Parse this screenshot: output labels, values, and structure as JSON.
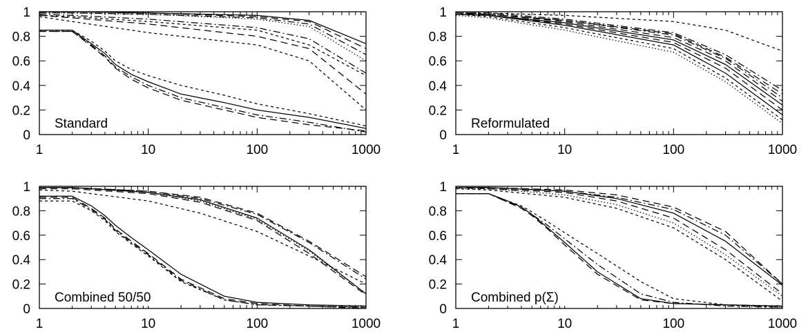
{
  "chart_data": [
    {
      "type": "line",
      "title": "Standard",
      "xscale": "log",
      "xlim": [
        1,
        1000
      ],
      "ylim": [
        0,
        1
      ],
      "xticks": [
        1,
        10,
        100,
        1000
      ],
      "yticks": [
        0,
        0.2,
        0.4,
        0.6,
        0.8,
        1
      ],
      "grid": false,
      "series": [
        {
          "style": "solid",
          "x": [
            1,
            2,
            10,
            100,
            300,
            1000
          ],
          "y": [
            1.0,
            1.0,
            0.99,
            0.97,
            0.93,
            0.74
          ]
        },
        {
          "style": "dashed",
          "x": [
            1,
            2,
            10,
            100,
            300,
            1000
          ],
          "y": [
            1.0,
            1.0,
            0.99,
            0.96,
            0.92,
            0.7
          ]
        },
        {
          "style": "dash-dot",
          "x": [
            1,
            2,
            10,
            100,
            300,
            1000
          ],
          "y": [
            0.99,
            0.99,
            0.98,
            0.95,
            0.9,
            0.65
          ]
        },
        {
          "style": "dotted",
          "x": [
            1,
            2,
            10,
            100,
            300,
            1000
          ],
          "y": [
            0.99,
            0.99,
            0.98,
            0.94,
            0.88,
            0.6
          ]
        },
        {
          "style": "dash-dot",
          "x": [
            1,
            2,
            10,
            100,
            300,
            1000
          ],
          "y": [
            0.98,
            0.97,
            0.94,
            0.87,
            0.78,
            0.5
          ]
        },
        {
          "style": "short-dash",
          "x": [
            1,
            2,
            10,
            100,
            300,
            1000
          ],
          "y": [
            0.97,
            0.96,
            0.92,
            0.85,
            0.73,
            0.48
          ]
        },
        {
          "style": "dashed",
          "x": [
            1,
            2,
            10,
            100,
            300,
            1000
          ],
          "y": [
            0.97,
            0.95,
            0.9,
            0.8,
            0.7,
            0.33
          ]
        },
        {
          "style": "short-dash",
          "x": [
            1,
            2,
            10,
            100,
            300,
            1000
          ],
          "y": [
            0.96,
            0.92,
            0.83,
            0.73,
            0.6,
            0.2
          ]
        },
        {
          "style": "solid",
          "x": [
            1,
            2,
            3,
            4,
            5,
            7,
            10,
            20,
            50,
            100,
            300,
            1000
          ],
          "y": [
            0.85,
            0.85,
            0.74,
            0.66,
            0.57,
            0.49,
            0.43,
            0.33,
            0.26,
            0.2,
            0.14,
            0.05
          ]
        },
        {
          "style": "dashed",
          "x": [
            1,
            2,
            3,
            4,
            5,
            7,
            10,
            20,
            50,
            100,
            300,
            1000
          ],
          "y": [
            0.84,
            0.84,
            0.72,
            0.63,
            0.54,
            0.45,
            0.38,
            0.28,
            0.2,
            0.14,
            0.08,
            0.03
          ]
        },
        {
          "style": "short-dash",
          "x": [
            1,
            2,
            3,
            4,
            5,
            7,
            10,
            20,
            50,
            100,
            300,
            1000
          ],
          "y": [
            0.85,
            0.85,
            0.76,
            0.68,
            0.6,
            0.53,
            0.48,
            0.4,
            0.32,
            0.25,
            0.17,
            0.07
          ]
        },
        {
          "style": "dash-dot",
          "x": [
            1,
            2,
            3,
            4,
            5,
            7,
            10,
            20,
            50,
            100,
            300,
            1000
          ],
          "y": [
            0.84,
            0.84,
            0.73,
            0.64,
            0.55,
            0.47,
            0.4,
            0.3,
            0.22,
            0.16,
            0.1,
            0.02
          ]
        }
      ]
    },
    {
      "type": "line",
      "title": "Reformulated",
      "xscale": "log",
      "xlim": [
        1,
        1000
      ],
      "ylim": [
        0,
        1
      ],
      "xticks": [
        1,
        10,
        100,
        1000
      ],
      "yticks": [
        0,
        0.2,
        0.4,
        0.6,
        0.8,
        1
      ],
      "grid": false,
      "series": [
        {
          "style": "short-dash",
          "x": [
            1,
            2,
            10,
            100,
            300,
            1000
          ],
          "y": [
            0.99,
            0.99,
            0.97,
            0.92,
            0.85,
            0.68
          ]
        },
        {
          "style": "dash-dot",
          "x": [
            1,
            2,
            10,
            100,
            300,
            1000
          ],
          "y": [
            0.99,
            0.99,
            0.94,
            0.83,
            0.65,
            0.36
          ]
        },
        {
          "style": "dashed",
          "x": [
            1,
            2,
            10,
            100,
            300,
            1000
          ],
          "y": [
            0.99,
            0.98,
            0.93,
            0.82,
            0.63,
            0.33
          ]
        },
        {
          "style": "dash-dot",
          "x": [
            1,
            2,
            10,
            100,
            300,
            1000
          ],
          "y": [
            0.99,
            0.98,
            0.93,
            0.81,
            0.62,
            0.3
          ]
        },
        {
          "style": "dashed",
          "x": [
            1,
            2,
            10,
            100,
            300,
            1000
          ],
          "y": [
            0.98,
            0.98,
            0.92,
            0.79,
            0.6,
            0.27
          ]
        },
        {
          "style": "solid",
          "x": [
            1,
            2,
            10,
            100,
            300,
            1000
          ],
          "y": [
            0.98,
            0.97,
            0.91,
            0.77,
            0.57,
            0.24
          ]
        },
        {
          "style": "dashed",
          "x": [
            1,
            2,
            10,
            100,
            300,
            1000
          ],
          "y": [
            0.98,
            0.97,
            0.9,
            0.75,
            0.54,
            0.2
          ]
        },
        {
          "style": "solid",
          "x": [
            1,
            2,
            10,
            100,
            300,
            1000
          ],
          "y": [
            0.98,
            0.97,
            0.89,
            0.73,
            0.5,
            0.16
          ]
        },
        {
          "style": "short-dash",
          "x": [
            1,
            2,
            10,
            100,
            300,
            1000
          ],
          "y": [
            0.98,
            0.96,
            0.87,
            0.7,
            0.46,
            0.12
          ]
        },
        {
          "style": "dotted",
          "x": [
            1,
            2,
            10,
            100,
            300,
            1000
          ],
          "y": [
            0.97,
            0.95,
            0.85,
            0.67,
            0.43,
            0.09
          ]
        }
      ]
    },
    {
      "type": "line",
      "title": "Combined 50/50",
      "xscale": "log",
      "xlim": [
        1,
        1000
      ],
      "ylim": [
        0,
        1
      ],
      "xticks": [
        1,
        10,
        100,
        1000
      ],
      "yticks": [
        0,
        0.2,
        0.4,
        0.6,
        0.8,
        1
      ],
      "grid": false,
      "series": [
        {
          "style": "dashed",
          "x": [
            1,
            2,
            10,
            30,
            100,
            300,
            1000
          ],
          "y": [
            0.99,
            0.99,
            0.96,
            0.91,
            0.78,
            0.55,
            0.26
          ]
        },
        {
          "style": "dash-dot",
          "x": [
            1,
            2,
            10,
            30,
            100,
            300,
            1000
          ],
          "y": [
            0.99,
            0.99,
            0.96,
            0.9,
            0.77,
            0.54,
            0.24
          ]
        },
        {
          "style": "solid",
          "x": [
            1,
            2,
            10,
            30,
            100,
            300,
            1000
          ],
          "y": [
            0.99,
            0.99,
            0.95,
            0.89,
            0.74,
            0.48,
            0.12
          ]
        },
        {
          "style": "dotted",
          "x": [
            1,
            2,
            10,
            30,
            100,
            300,
            1000
          ],
          "y": [
            0.99,
            0.99,
            0.95,
            0.88,
            0.73,
            0.47,
            0.12
          ]
        },
        {
          "style": "dashed",
          "x": [
            1,
            2,
            10,
            30,
            100,
            300,
            1000
          ],
          "y": [
            0.98,
            0.98,
            0.94,
            0.87,
            0.72,
            0.45,
            0.11
          ]
        },
        {
          "style": "short-dash",
          "x": [
            1,
            2,
            10,
            30,
            100,
            300,
            1000
          ],
          "y": [
            0.97,
            0.96,
            0.88,
            0.78,
            0.63,
            0.43,
            0.2
          ]
        },
        {
          "style": "solid",
          "x": [
            1,
            2,
            3,
            4,
            5,
            7,
            10,
            20,
            50,
            100,
            300,
            1000
          ],
          "y": [
            0.92,
            0.92,
            0.84,
            0.76,
            0.68,
            0.58,
            0.48,
            0.28,
            0.1,
            0.05,
            0.03,
            0.02
          ]
        },
        {
          "style": "dashed",
          "x": [
            1,
            2,
            3,
            4,
            5,
            7,
            10,
            20,
            50,
            100,
            300,
            1000
          ],
          "y": [
            0.91,
            0.91,
            0.82,
            0.74,
            0.65,
            0.55,
            0.45,
            0.24,
            0.08,
            0.04,
            0.02,
            0.01
          ]
        },
        {
          "style": "short-dash",
          "x": [
            1,
            2,
            3,
            4,
            5,
            7,
            10,
            20,
            50,
            100,
            300,
            1000
          ],
          "y": [
            0.88,
            0.88,
            0.8,
            0.72,
            0.63,
            0.53,
            0.43,
            0.22,
            0.07,
            0.03,
            0.02,
            0.01
          ]
        },
        {
          "style": "dash-dot",
          "x": [
            1,
            2,
            3,
            4,
            5,
            7,
            10,
            20,
            50,
            100,
            300,
            1000
          ],
          "y": [
            0.9,
            0.9,
            0.81,
            0.73,
            0.64,
            0.54,
            0.44,
            0.23,
            0.07,
            0.03,
            0.02,
            0.0
          ]
        }
      ]
    },
    {
      "type": "line",
      "title": "Combined p(Σ)",
      "xscale": "log",
      "xlim": [
        1,
        1000
      ],
      "ylim": [
        0,
        1
      ],
      "xticks": [
        1,
        10,
        100,
        1000
      ],
      "yticks": [
        0,
        0.2,
        0.4,
        0.6,
        0.8,
        1
      ],
      "grid": false,
      "series": [
        {
          "style": "dashed",
          "x": [
            1,
            2,
            10,
            30,
            100,
            300,
            1000
          ],
          "y": [
            0.99,
            0.99,
            0.97,
            0.93,
            0.83,
            0.63,
            0.2
          ]
        },
        {
          "style": "dash-dot",
          "x": [
            1,
            2,
            10,
            30,
            100,
            300,
            1000
          ],
          "y": [
            0.99,
            0.99,
            0.96,
            0.91,
            0.81,
            0.6,
            0.2
          ]
        },
        {
          "style": "solid",
          "x": [
            1,
            2,
            10,
            30,
            100,
            300,
            1000
          ],
          "y": [
            0.99,
            0.99,
            0.96,
            0.9,
            0.78,
            0.55,
            0.19
          ]
        },
        {
          "style": "dashed",
          "x": [
            1,
            2,
            10,
            30,
            100,
            300,
            1000
          ],
          "y": [
            0.99,
            0.98,
            0.95,
            0.88,
            0.74,
            0.48,
            0.12
          ]
        },
        {
          "style": "dotted",
          "x": [
            1,
            2,
            10,
            30,
            100,
            300,
            1000
          ],
          "y": [
            0.98,
            0.98,
            0.93,
            0.85,
            0.7,
            0.44,
            0.1
          ]
        },
        {
          "style": "short-dash",
          "x": [
            1,
            2,
            10,
            30,
            100,
            300,
            1000
          ],
          "y": [
            0.98,
            0.97,
            0.91,
            0.82,
            0.66,
            0.4,
            0.06
          ]
        },
        {
          "style": "solid",
          "x": [
            1,
            2,
            3,
            4,
            5,
            7,
            10,
            20,
            50,
            100,
            300,
            1000
          ],
          "y": [
            0.94,
            0.94,
            0.88,
            0.83,
            0.77,
            0.66,
            0.54,
            0.3,
            0.08,
            0.04,
            0.03,
            0.02
          ]
        },
        {
          "style": "dashed",
          "x": [
            1,
            2,
            3,
            4,
            5,
            7,
            10,
            20,
            50,
            100,
            300,
            1000
          ],
          "y": [
            0.94,
            0.94,
            0.87,
            0.82,
            0.76,
            0.65,
            0.52,
            0.28,
            0.07,
            0.04,
            0.03,
            0.02
          ]
        },
        {
          "style": "short-dash",
          "x": [
            1,
            2,
            3,
            4,
            5,
            7,
            10,
            20,
            50,
            100,
            300,
            1000
          ],
          "y": [
            0.94,
            0.94,
            0.88,
            0.84,
            0.79,
            0.71,
            0.62,
            0.45,
            0.22,
            0.08,
            0.03,
            0.01
          ]
        },
        {
          "style": "dash-dot",
          "x": [
            1,
            2,
            3,
            4,
            5,
            7,
            10,
            20,
            50,
            100,
            300,
            1000
          ],
          "y": [
            0.94,
            0.94,
            0.87,
            0.83,
            0.77,
            0.68,
            0.57,
            0.36,
            0.12,
            0.05,
            0.02,
            0.01
          ]
        }
      ]
    }
  ]
}
